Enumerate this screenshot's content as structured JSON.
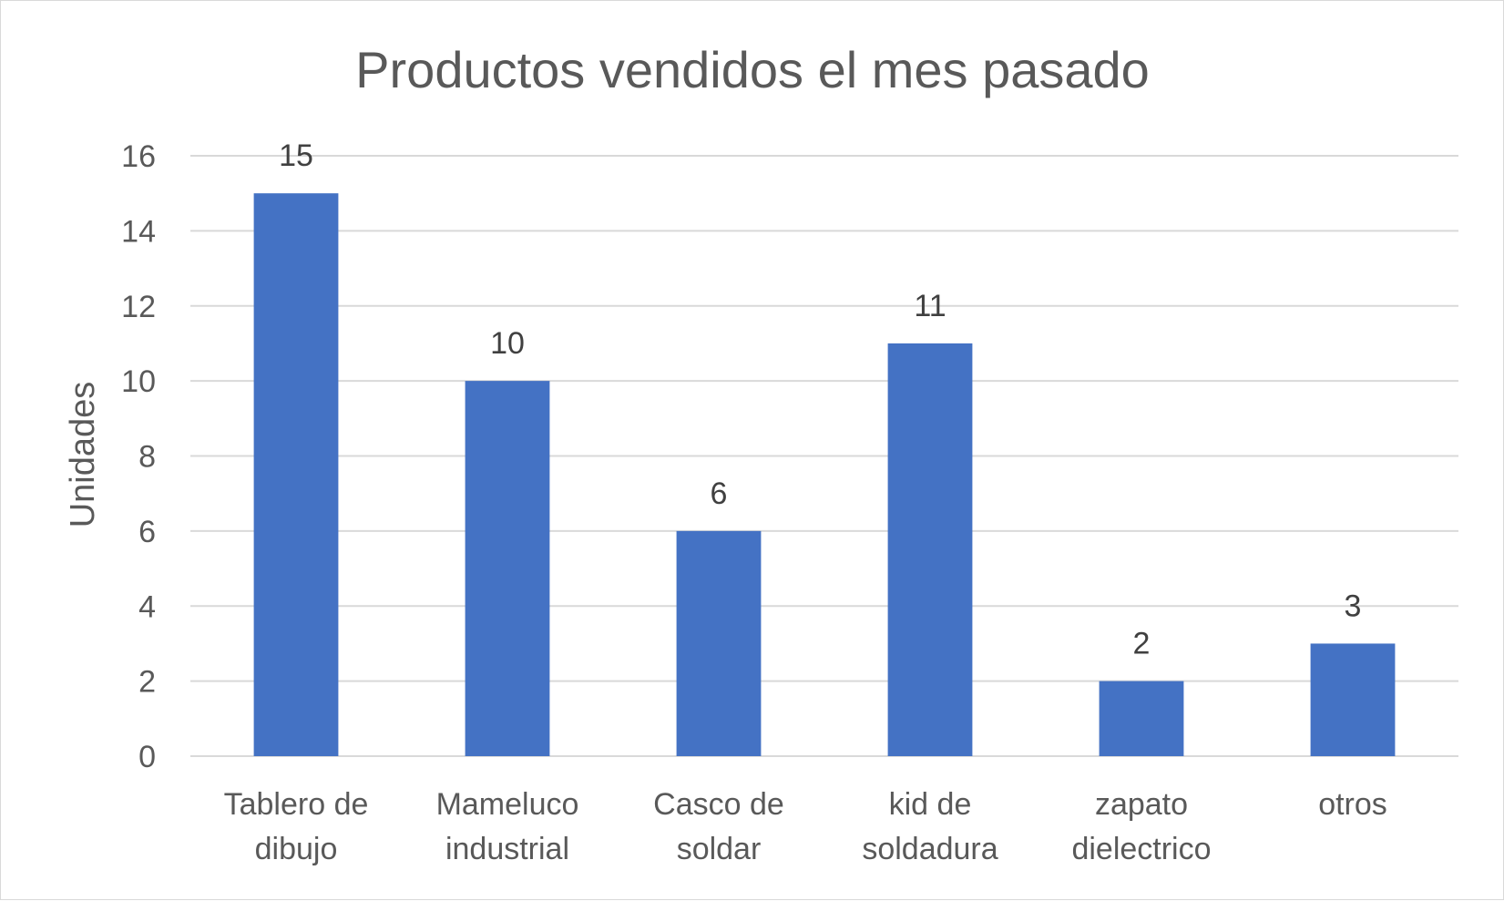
{
  "chart_data": {
    "type": "bar",
    "title": "Productos vendidos el mes pasado",
    "ylabel": "Unidades",
    "xlabel": "",
    "ylim": [
      0,
      16
    ],
    "yticks": [
      0,
      2,
      4,
      6,
      8,
      10,
      12,
      14,
      16
    ],
    "grid": true,
    "bar_color": "#4472C4",
    "categories": [
      [
        "Tablero de",
        "dibujo"
      ],
      [
        "Mameluco",
        "industrial"
      ],
      [
        "Casco de",
        "soldar"
      ],
      [
        "kid de",
        "soldadura"
      ],
      [
        "zapato",
        "dielectrico"
      ],
      [
        "otros"
      ]
    ],
    "values": [
      15,
      10,
      6,
      11,
      2,
      3
    ]
  }
}
